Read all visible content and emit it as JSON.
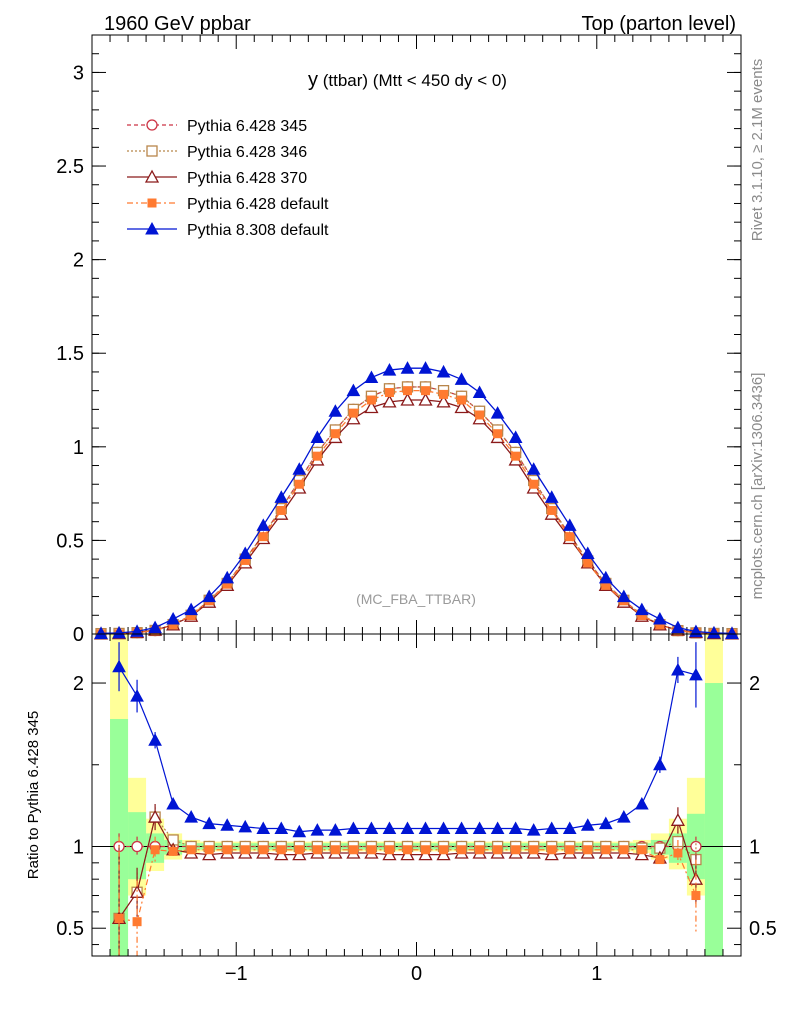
{
  "header": {
    "left": "1960 GeV ppbar",
    "right": "Top (parton level)"
  },
  "side": {
    "rivet": "Rivet 3.1.10, ≥ 2.1M events",
    "mcplots": "mcplots.cern.ch [arXiv:1306.3436]"
  },
  "plot": {
    "title_main": "y",
    "title_rest": " (ttbar) (Mtt < 450 dy < 0)",
    "watermark": "(MC_FBA_TTBAR)",
    "ratio_ylabel": "Ratio to Pythia 6.428 345"
  },
  "colors": {
    "p345": "#cc3344",
    "p346": "#b8864b",
    "p370": "#8b1a1a",
    "pdef": "#ff7a30",
    "p8": "#0015d4",
    "band_yellow": "#ffff99",
    "band_green": "#99ff99"
  },
  "chart_data": [
    {
      "type": "line",
      "panel": "main",
      "xlim": [
        -1.8,
        1.8
      ],
      "ylim": [
        0,
        3.2
      ],
      "yticks": [
        0,
        0.5,
        1,
        1.5,
        2,
        2.5,
        3
      ],
      "ytick_labels": [
        "0",
        "0.5",
        "1",
        "1.5",
        "2",
        "2.5",
        "3"
      ],
      "legend_position": "top-left",
      "x": [
        -1.75,
        -1.65,
        -1.55,
        -1.45,
        -1.35,
        -1.25,
        -1.15,
        -1.05,
        -0.95,
        -0.85,
        -0.75,
        -0.65,
        -0.55,
        -0.45,
        -0.35,
        -0.25,
        -0.15,
        -0.05,
        0.05,
        0.15,
        0.25,
        0.35,
        0.45,
        0.55,
        0.65,
        0.75,
        0.85,
        0.95,
        1.05,
        1.15,
        1.25,
        1.35,
        1.45,
        1.55,
        1.65,
        1.75
      ],
      "series": [
        {
          "name": "Pythia 6.428 345",
          "key": "p345",
          "marker": "circle-open",
          "dash": "4,3",
          "values": [
            0.002,
            0.003,
            0.007,
            0.018,
            0.05,
            0.1,
            0.18,
            0.27,
            0.4,
            0.53,
            0.67,
            0.82,
            0.97,
            1.09,
            1.2,
            1.27,
            1.31,
            1.32,
            1.32,
            1.3,
            1.27,
            1.19,
            1.09,
            0.97,
            0.82,
            0.67,
            0.53,
            0.39,
            0.27,
            0.18,
            0.1,
            0.05,
            0.018,
            0.007,
            0.003,
            0.002
          ]
        },
        {
          "name": "Pythia 6.428 346",
          "key": "p346",
          "marker": "square-open",
          "dash": "2,2",
          "values": [
            0.002,
            0.003,
            0.007,
            0.019,
            0.05,
            0.1,
            0.18,
            0.27,
            0.4,
            0.53,
            0.67,
            0.82,
            0.97,
            1.09,
            1.2,
            1.27,
            1.31,
            1.32,
            1.32,
            1.3,
            1.27,
            1.19,
            1.09,
            0.97,
            0.82,
            0.67,
            0.53,
            0.39,
            0.27,
            0.18,
            0.1,
            0.05,
            0.018,
            0.006,
            0.003,
            0.002
          ]
        },
        {
          "name": "Pythia 6.428 370",
          "key": "p370",
          "marker": "triangle-open",
          "dash": "",
          "values": [
            0.001,
            0.002,
            0.008,
            0.021,
            0.049,
            0.095,
            0.17,
            0.26,
            0.38,
            0.51,
            0.64,
            0.78,
            0.93,
            1.05,
            1.15,
            1.21,
            1.24,
            1.25,
            1.25,
            1.24,
            1.21,
            1.15,
            1.05,
            0.93,
            0.78,
            0.64,
            0.51,
            0.38,
            0.26,
            0.17,
            0.095,
            0.049,
            0.021,
            0.008,
            0.002,
            0.001
          ]
        },
        {
          "name": "Pythia 6.428 default",
          "key": "pdef",
          "marker": "square-filled",
          "dash": "6,3,2,3",
          "values": [
            0.001,
            0.001,
            0.007,
            0.018,
            0.049,
            0.098,
            0.177,
            0.266,
            0.393,
            0.52,
            0.66,
            0.8,
            0.95,
            1.07,
            1.18,
            1.25,
            1.29,
            1.3,
            1.3,
            1.28,
            1.25,
            1.17,
            1.07,
            0.95,
            0.8,
            0.66,
            0.52,
            0.38,
            0.26,
            0.177,
            0.098,
            0.049,
            0.017,
            0.007,
            0.003,
            0.001
          ]
        },
        {
          "name": "Pythia 8.308 default",
          "key": "p8",
          "marker": "triangle-filled",
          "dash": "",
          "values": [
            0.003,
            0.006,
            0.014,
            0.034,
            0.08,
            0.13,
            0.2,
            0.3,
            0.43,
            0.58,
            0.73,
            0.88,
            1.05,
            1.19,
            1.3,
            1.37,
            1.41,
            1.42,
            1.42,
            1.4,
            1.36,
            1.29,
            1.18,
            1.05,
            0.88,
            0.73,
            0.58,
            0.43,
            0.3,
            0.2,
            0.13,
            0.08,
            0.034,
            0.013,
            0.006,
            0.003
          ]
        }
      ]
    },
    {
      "type": "line",
      "panel": "ratio",
      "ylabel": "Ratio to Pythia 6.428 345",
      "xlim": [
        -1.8,
        1.8
      ],
      "ylim": [
        0.33,
        2.3
      ],
      "xticks": [
        -1,
        0,
        1
      ],
      "xtick_labels": [
        "−1",
        "0",
        "1"
      ],
      "yticks": [
        0.5,
        1,
        2
      ],
      "ytick_labels": [
        "0.5",
        "1",
        "2"
      ],
      "reference_line": 1,
      "bands": {
        "x_edges": [
          -1.7,
          -1.6,
          -1.5,
          -1.4,
          -1.3,
          -1.2,
          1.2,
          1.3,
          1.4,
          1.5,
          1.6,
          1.7
        ],
        "yellow": [
          [
            0.33,
            2.3
          ],
          [
            0.7,
            1.42
          ],
          [
            0.85,
            1.17
          ],
          [
            0.92,
            1.08
          ],
          [
            0.96,
            1.04
          ],
          [
            0.97,
            1.03
          ],
          [
            0.96,
            1.04
          ],
          [
            0.92,
            1.08
          ],
          [
            0.86,
            1.17
          ],
          [
            0.7,
            1.42
          ],
          [
            0.33,
            2.3
          ]
        ],
        "green": [
          [
            0.33,
            1.78
          ],
          [
            0.8,
            1.21
          ],
          [
            0.9,
            1.08
          ],
          [
            0.95,
            1.04
          ],
          [
            0.98,
            1.02
          ],
          [
            0.98,
            1.02
          ],
          [
            0.98,
            1.02
          ],
          [
            0.95,
            1.04
          ],
          [
            0.9,
            1.08
          ],
          [
            0.8,
            1.2
          ],
          [
            0.33,
            2.0
          ]
        ]
      },
      "x": [
        -1.65,
        -1.55,
        -1.45,
        -1.35,
        -1.25,
        -1.15,
        -1.05,
        -0.95,
        -0.85,
        -0.75,
        -0.65,
        -0.55,
        -0.45,
        -0.35,
        -0.25,
        -0.15,
        -0.05,
        0.05,
        0.15,
        0.25,
        0.35,
        0.45,
        0.55,
        0.65,
        0.75,
        0.85,
        0.95,
        1.05,
        1.15,
        1.25,
        1.35,
        1.45,
        1.55
      ],
      "series": [
        {
          "name": "Pythia 6.428 345",
          "key": "p345",
          "marker": "circle-open",
          "dash": "4,3",
          "values": [
            1,
            1,
            1,
            1,
            1,
            1,
            1,
            1,
            1,
            1,
            1,
            1,
            1,
            1,
            1,
            1,
            1,
            1,
            1,
            1,
            1,
            1,
            1,
            1,
            1,
            1,
            1,
            1,
            1,
            1,
            1,
            1,
            1
          ],
          "err": [
            0.08,
            0.06,
            0.04,
            0.03,
            0.02,
            0.02,
            0.01,
            0.01,
            0.01,
            0.01,
            0.01,
            0.01,
            0.01,
            0.01,
            0.01,
            0.01,
            0.01,
            0.01,
            0.01,
            0.01,
            0.01,
            0.01,
            0.01,
            0.01,
            0.01,
            0.01,
            0.01,
            0.01,
            0.02,
            0.02,
            0.03,
            0.04,
            0.06
          ]
        },
        {
          "name": "Pythia 6.428 346",
          "key": "p346",
          "marker": "square-open",
          "dash": "2,2",
          "values": [
            0.56,
            0.72,
            1.18,
            1.04,
            1.0,
            1.0,
            1.0,
            1.0,
            1.0,
            1.0,
            1.0,
            1.0,
            1.0,
            1.0,
            1.0,
            1.0,
            1.0,
            1.0,
            1.0,
            1.0,
            1.0,
            1.0,
            1.0,
            1.0,
            1.0,
            1.0,
            1.0,
            1.0,
            1.0,
            0.99,
            0.99,
            1.03,
            0.92
          ],
          "err": [
            0.4,
            0.12,
            0.06,
            0.03,
            0.02,
            0.01,
            0.01,
            0.01,
            0.01,
            0.01,
            0.01,
            0.01,
            0.01,
            0.01,
            0.01,
            0.01,
            0.01,
            0.01,
            0.01,
            0.01,
            0.01,
            0.01,
            0.01,
            0.01,
            0.01,
            0.01,
            0.01,
            0.01,
            0.02,
            0.02,
            0.03,
            0.06,
            0.1
          ]
        },
        {
          "name": "Pythia 6.428 370",
          "key": "p370",
          "marker": "triangle-open",
          "dash": "",
          "values": [
            0.56,
            0.72,
            1.18,
            0.98,
            0.96,
            0.95,
            0.96,
            0.96,
            0.96,
            0.95,
            0.95,
            0.96,
            0.96,
            0.96,
            0.96,
            0.95,
            0.95,
            0.95,
            0.95,
            0.96,
            0.96,
            0.96,
            0.96,
            0.96,
            0.95,
            0.96,
            0.96,
            0.96,
            0.96,
            0.95,
            0.93,
            1.16,
            0.8
          ],
          "err": [
            0.45,
            0.15,
            0.08,
            0.03,
            0.02,
            0.01,
            0.01,
            0.01,
            0.01,
            0.01,
            0.01,
            0.01,
            0.01,
            0.01,
            0.01,
            0.01,
            0.01,
            0.01,
            0.01,
            0.01,
            0.01,
            0.01,
            0.01,
            0.01,
            0.01,
            0.01,
            0.01,
            0.01,
            0.02,
            0.02,
            0.03,
            0.08,
            0.15
          ]
        },
        {
          "name": "Pythia 6.428 default",
          "key": "pdef",
          "marker": "square-filled",
          "dash": "6,3,2,3",
          "values": [
            0.56,
            0.54,
            0.98,
            0.97,
            0.98,
            0.98,
            0.98,
            0.98,
            0.98,
            0.98,
            0.98,
            0.98,
            0.98,
            0.98,
            0.98,
            0.98,
            0.98,
            0.98,
            0.98,
            0.98,
            0.98,
            0.98,
            0.98,
            0.98,
            0.98,
            0.98,
            0.98,
            0.98,
            0.98,
            0.98,
            0.92,
            0.96,
            0.7
          ],
          "err": [
            0.5,
            0.25,
            0.08,
            0.04,
            0.02,
            0.01,
            0.01,
            0.01,
            0.01,
            0.01,
            0.01,
            0.01,
            0.01,
            0.01,
            0.01,
            0.01,
            0.01,
            0.01,
            0.01,
            0.01,
            0.01,
            0.01,
            0.01,
            0.01,
            0.01,
            0.01,
            0.01,
            0.01,
            0.02,
            0.02,
            0.04,
            0.08,
            0.22
          ]
        },
        {
          "name": "Pythia 8.308 default",
          "key": "p8",
          "marker": "triangle-filled",
          "dash": "",
          "values": [
            2.1,
            1.92,
            1.65,
            1.26,
            1.18,
            1.14,
            1.13,
            1.12,
            1.11,
            1.11,
            1.09,
            1.1,
            1.1,
            1.11,
            1.11,
            1.11,
            1.11,
            1.11,
            1.11,
            1.11,
            1.11,
            1.11,
            1.11,
            1.1,
            1.11,
            1.11,
            1.13,
            1.14,
            1.18,
            1.26,
            1.5,
            2.08,
            2.05
          ],
          "err": [
            0.15,
            0.1,
            0.05,
            0.03,
            0.02,
            0.01,
            0.01,
            0.01,
            0.01,
            0.01,
            0.01,
            0.01,
            0.01,
            0.01,
            0.01,
            0.01,
            0.01,
            0.01,
            0.01,
            0.01,
            0.01,
            0.01,
            0.01,
            0.01,
            0.01,
            0.01,
            0.01,
            0.01,
            0.02,
            0.03,
            0.05,
            0.08,
            0.2
          ]
        }
      ]
    }
  ]
}
